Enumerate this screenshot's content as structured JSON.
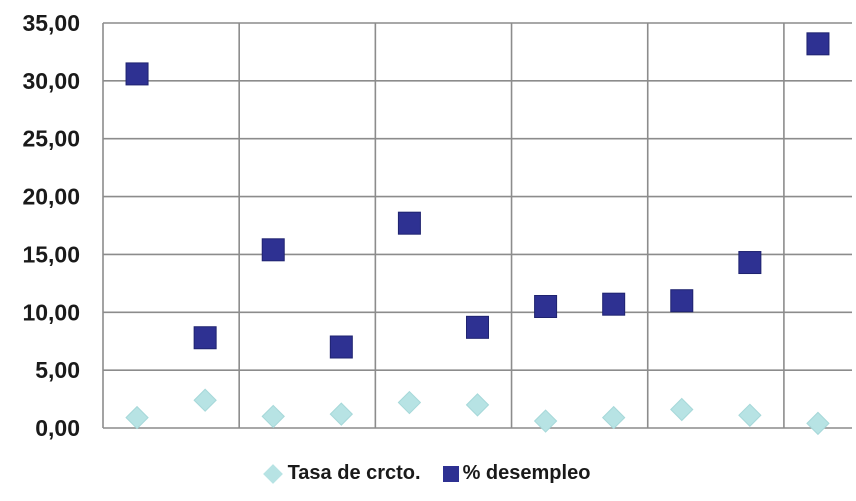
{
  "chart_data": {
    "type": "scatter",
    "title": "",
    "xlabel": "",
    "ylabel": "",
    "ylim": [
      0,
      35
    ],
    "xlim": [
      0,
      11
    ],
    "yticks": [
      "0,00",
      "5,00",
      "10,00",
      "15,00",
      "20,00",
      "25,00",
      "30,00",
      "35,00"
    ],
    "grid": "vertical and horizontal gridlines",
    "legend_position": "bottom",
    "x": [
      1,
      2,
      3,
      4,
      5,
      6,
      7,
      8,
      9,
      10,
      11
    ],
    "series": [
      {
        "name": "Tasa de crcto.",
        "marker": "diamond",
        "color": "#b7e3e4",
        "values": [
          0.9,
          2.4,
          1.0,
          1.2,
          2.2,
          2.0,
          0.6,
          0.9,
          1.6,
          1.1,
          0.4
        ]
      },
      {
        "name": "% desempleo",
        "marker": "square",
        "color": "#2e3192",
        "values": [
          30.6,
          7.8,
          15.4,
          7.0,
          17.7,
          8.7,
          10.5,
          10.7,
          11.0,
          14.3,
          33.2
        ]
      }
    ]
  }
}
